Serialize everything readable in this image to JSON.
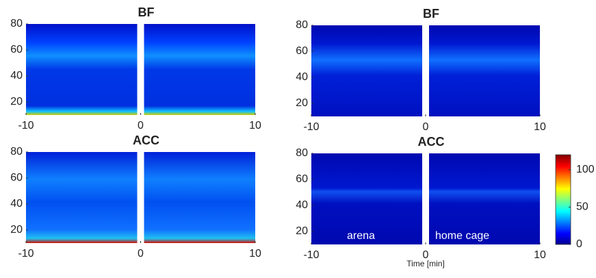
{
  "chart_data": [
    {
      "type": "heatmap",
      "title": "BF",
      "xlim": [
        -10,
        10
      ],
      "ylim": [
        10,
        80
      ],
      "xticks": [
        -10,
        0,
        10
      ],
      "yticks": [
        20,
        40,
        60,
        80
      ]
    },
    {
      "type": "heatmap",
      "title": "ACC",
      "xlim": [
        -10,
        10
      ],
      "ylim": [
        10,
        80
      ],
      "xticks": [
        -10,
        0,
        10
      ],
      "yticks": [
        20,
        40,
        60,
        80
      ]
    },
    {
      "type": "heatmap",
      "title": "BF",
      "xlim": [
        -10,
        10
      ],
      "ylim": [
        10,
        80
      ],
      "xticks": [
        -10,
        0,
        10
      ],
      "yticks": [
        20,
        40,
        60,
        80
      ]
    },
    {
      "type": "heatmap",
      "title": "ACC",
      "xlim": [
        -10,
        10
      ],
      "ylim": [
        10,
        80
      ],
      "xticks": [
        -10,
        0,
        10
      ],
      "yticks": [
        20,
        40,
        60,
        80
      ],
      "x_label": "Time [min]",
      "annotations": [
        "arena",
        "home cage"
      ],
      "colorbar": {
        "clim": [
          0,
          120
        ],
        "ticks": [
          0,
          50,
          100
        ]
      }
    }
  ]
}
